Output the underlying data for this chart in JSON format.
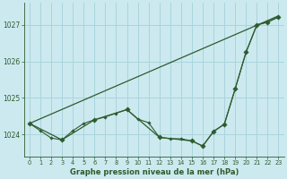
{
  "title": "Graphe pression niveau de la mer (hPa)",
  "bg_color": "#cce9f0",
  "grid_color": "#aad4dc",
  "line_color": "#2d5c2d",
  "xlim": [
    -0.5,
    23.5
  ],
  "ylim": [
    1023.4,
    1027.6
  ],
  "xticks": [
    0,
    1,
    2,
    3,
    4,
    5,
    6,
    7,
    8,
    9,
    10,
    11,
    12,
    13,
    14,
    15,
    16,
    17,
    18,
    19,
    20,
    21,
    22,
    23
  ],
  "yticks": [
    1024,
    1025,
    1026,
    1027
  ],
  "series_straight": {
    "x": [
      0,
      23
    ],
    "y": [
      1024.3,
      1027.25
    ]
  },
  "series_detailed": {
    "x": [
      0,
      1,
      2,
      3,
      4,
      5,
      6,
      7,
      8,
      9,
      10,
      11,
      12,
      13,
      14,
      15,
      16,
      17,
      18,
      19,
      20,
      21,
      22,
      23
    ],
    "y": [
      1024.3,
      1024.1,
      1023.9,
      1023.85,
      1024.1,
      1024.3,
      1024.4,
      1024.48,
      1024.58,
      1024.68,
      1024.42,
      1024.32,
      1023.92,
      1023.88,
      1023.88,
      1023.82,
      1023.68,
      1024.08,
      1024.28,
      1025.25,
      1026.25,
      1027.0,
      1027.08,
      1027.22
    ]
  },
  "series_3h": {
    "x": [
      0,
      3,
      6,
      9,
      12,
      15,
      16,
      17,
      18,
      19,
      20,
      21,
      22,
      23
    ],
    "y": [
      1024.3,
      1023.85,
      1024.4,
      1024.68,
      1023.92,
      1023.82,
      1023.68,
      1024.08,
      1024.28,
      1025.25,
      1026.25,
      1027.0,
      1027.08,
      1027.22
    ]
  }
}
